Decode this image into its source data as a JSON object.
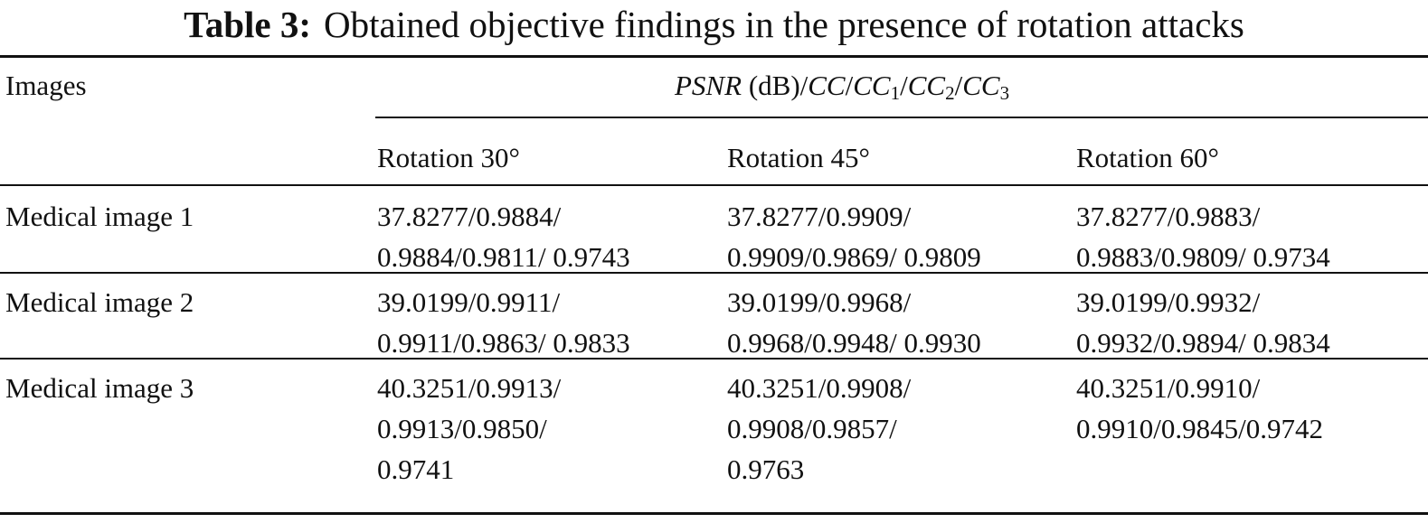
{
  "table": {
    "label": "Table 3:",
    "caption": "Obtained objective findings in the presence of rotation attacks",
    "row_header": "Images",
    "group_header": {
      "psnr": "PSNR",
      "psnr_unit": " (dB)/",
      "cc": "CC",
      "sep": "/",
      "cc1_sub": "1",
      "cc2_sub": "2",
      "cc3_sub": "3"
    },
    "columns": [
      "Rotation 30°",
      "Rotation 45°",
      "Rotation 60°"
    ],
    "rows": [
      {
        "image": "Medical image 1",
        "cells": [
          [
            "37.8277/0.9884/",
            "0.9884/0.9811/ 0.9743"
          ],
          [
            "37.8277/0.9909/",
            "0.9909/0.9869/ 0.9809"
          ],
          [
            "37.8277/0.9883/",
            "0.9883/0.9809/ 0.9734"
          ]
        ]
      },
      {
        "image": "Medical image 2",
        "cells": [
          [
            "39.0199/0.9911/",
            "0.9911/0.9863/ 0.9833"
          ],
          [
            "39.0199/0.9968/",
            "0.9968/0.9948/ 0.9930"
          ],
          [
            "39.0199/0.9932/",
            "0.9932/0.9894/ 0.9834"
          ]
        ]
      },
      {
        "image": "Medical image 3",
        "cells": [
          [
            "40.3251/0.9913/",
            "0.9913/0.9850/",
            "0.9741"
          ],
          [
            "40.3251/0.9908/",
            "0.9908/0.9857/",
            "0.9763"
          ],
          [
            "40.3251/0.9910/",
            "0.9910/0.9845/0.9742"
          ]
        ]
      }
    ]
  }
}
